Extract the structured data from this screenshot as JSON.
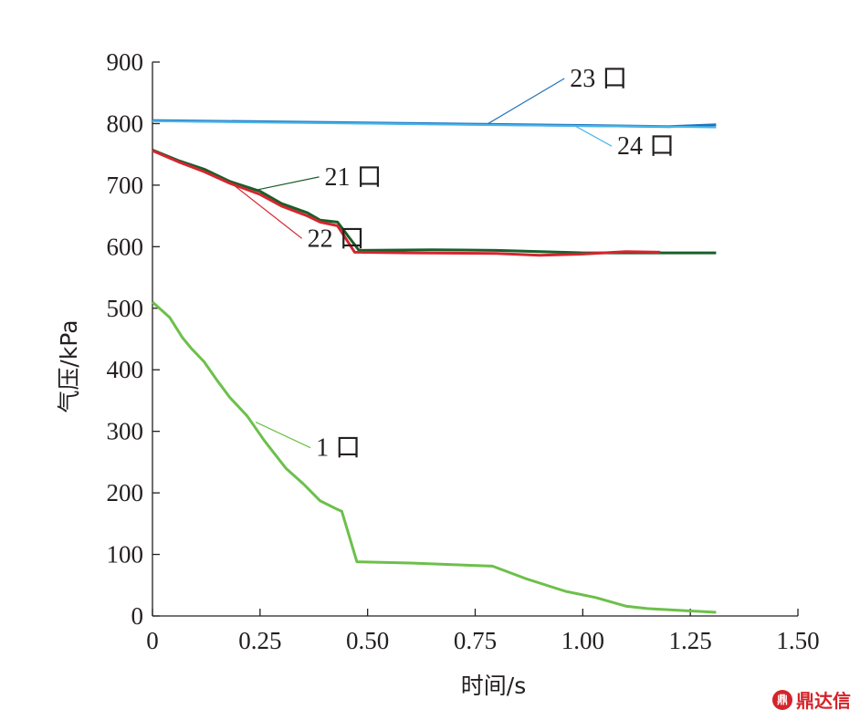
{
  "chart_data": {
    "type": "line",
    "title": "",
    "xlabel": "时间/s",
    "ylabel": "气压/kPa",
    "xlim": [
      0,
      1.5
    ],
    "ylim": [
      0,
      900
    ],
    "x_ticks": [
      "0",
      "0.25",
      "0.50",
      "0.75",
      "1.00",
      "1.25",
      "1.50"
    ],
    "x_tick_values": [
      0,
      0.25,
      0.5,
      0.75,
      1.0,
      1.25,
      1.5
    ],
    "y_ticks": [
      "0",
      "100",
      "200",
      "300",
      "400",
      "500",
      "600",
      "700",
      "800",
      "900"
    ],
    "y_tick_values": [
      0,
      100,
      200,
      300,
      400,
      500,
      600,
      700,
      800,
      900
    ],
    "grid": false,
    "series": [
      {
        "name": "23 口",
        "color": "#1e73be",
        "points": [
          [
            0,
            805
          ],
          [
            0.25,
            803
          ],
          [
            0.5,
            801
          ],
          [
            0.75,
            799
          ],
          [
            1.0,
            797
          ],
          [
            1.2,
            795
          ],
          [
            1.31,
            798
          ]
        ]
      },
      {
        "name": "24 口",
        "color": "#49b6e8",
        "points": [
          [
            0,
            804
          ],
          [
            0.25,
            802
          ],
          [
            0.5,
            800
          ],
          [
            0.75,
            798
          ],
          [
            1.0,
            796
          ],
          [
            1.2,
            795
          ],
          [
            1.31,
            794
          ]
        ]
      },
      {
        "name": "21 口",
        "color": "#1a5e2a",
        "points": [
          [
            0,
            757
          ],
          [
            0.06,
            740
          ],
          [
            0.12,
            726
          ],
          [
            0.18,
            706
          ],
          [
            0.25,
            690
          ],
          [
            0.3,
            670
          ],
          [
            0.36,
            655
          ],
          [
            0.39,
            643
          ],
          [
            0.43,
            640
          ],
          [
            0.48,
            594
          ],
          [
            0.65,
            595
          ],
          [
            0.8,
            594
          ],
          [
            1.0,
            590
          ],
          [
            1.2,
            590
          ],
          [
            1.31,
            590
          ]
        ]
      },
      {
        "name": "22 口",
        "color": "#d4262e",
        "points": [
          [
            0,
            756
          ],
          [
            0.06,
            738
          ],
          [
            0.12,
            722
          ],
          [
            0.18,
            703
          ],
          [
            0.25,
            685
          ],
          [
            0.3,
            666
          ],
          [
            0.36,
            650
          ],
          [
            0.39,
            640
          ],
          [
            0.43,
            634
          ],
          [
            0.47,
            591
          ],
          [
            0.6,
            590
          ],
          [
            0.8,
            589
          ],
          [
            0.9,
            586
          ],
          [
            1.0,
            588
          ],
          [
            1.1,
            592
          ],
          [
            1.18,
            591
          ]
        ]
      },
      {
        "name": "1 口",
        "color": "#6cc04a",
        "points": [
          [
            0,
            510
          ],
          [
            0.04,
            485
          ],
          [
            0.07,
            452
          ],
          [
            0.09,
            435
          ],
          [
            0.12,
            413
          ],
          [
            0.15,
            383
          ],
          [
            0.18,
            355
          ],
          [
            0.22,
            325
          ],
          [
            0.26,
            285
          ],
          [
            0.31,
            240
          ],
          [
            0.35,
            215
          ],
          [
            0.39,
            187
          ],
          [
            0.43,
            173
          ],
          [
            0.44,
            170
          ],
          [
            0.475,
            88
          ],
          [
            0.6,
            86
          ],
          [
            0.79,
            81
          ],
          [
            0.87,
            60
          ],
          [
            0.96,
            40
          ],
          [
            1.03,
            30
          ],
          [
            1.1,
            16
          ],
          [
            1.15,
            12
          ],
          [
            1.31,
            6
          ]
        ]
      }
    ],
    "annotations": [
      {
        "label": "23 口",
        "num": "23",
        "unit": "口",
        "anchor": [
          0.78,
          800
        ],
        "text_at": [
          0.97,
          860
        ]
      },
      {
        "label": "24 口",
        "num": "24",
        "unit": "口",
        "anchor": [
          0.98,
          797
        ],
        "text_at": [
          1.08,
          750
        ]
      },
      {
        "label": "21 口",
        "num": "21",
        "unit": "口",
        "anchor": [
          0.24,
          692
        ],
        "text_at": [
          0.4,
          700
        ]
      },
      {
        "label": "22 口",
        "num": "22",
        "unit": "口",
        "anchor": [
          0.18,
          705
        ],
        "text_at": [
          0.36,
          600
        ]
      },
      {
        "label": "1 口",
        "num": "1",
        "unit": "口",
        "anchor": [
          0.24,
          315
        ],
        "text_at": [
          0.38,
          260
        ]
      }
    ]
  },
  "watermark": {
    "logo": "鼎",
    "text": "鼎达信"
  }
}
